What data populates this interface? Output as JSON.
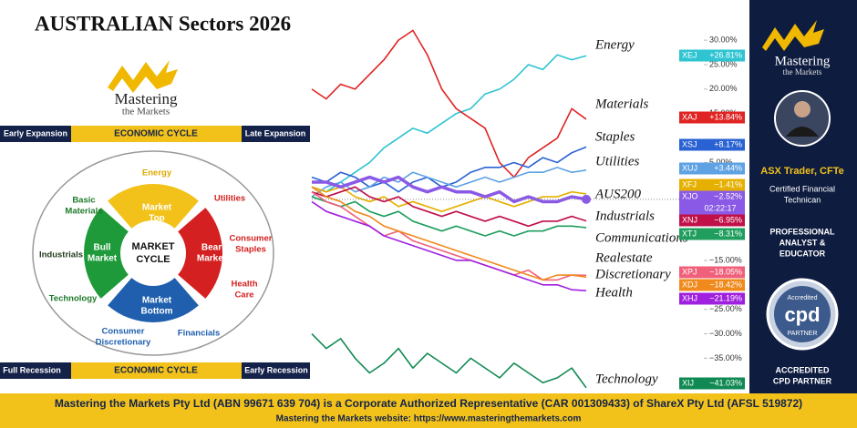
{
  "header": {
    "title": "AUSTRALIAN Sectors 2026"
  },
  "logo": {
    "name": "Mastering",
    "tagline": "the Markets"
  },
  "cycle": {
    "top_left": "Early Expansion",
    "top_center": "ECONOMIC CYCLE",
    "top_right": "Late Expansion",
    "bottom_left": "Full Recession",
    "bottom_center": "ECONOMIC CYCLE",
    "bottom_right": "Early Recession",
    "center": [
      "MARKET",
      "CYCLE"
    ],
    "phases": [
      [
        "Market",
        "Top"
      ],
      [
        "Bear",
        "Market"
      ],
      [
        "Market",
        "Bottom"
      ],
      [
        "Bull",
        "Market"
      ]
    ],
    "sectors": [
      {
        "lines": [
          "Energy"
        ],
        "color": "#e0a800"
      },
      {
        "lines": [
          "Utilities"
        ],
        "color": "#d42020"
      },
      {
        "lines": [
          "Consumer",
          "Staples"
        ],
        "color": "#d42020"
      },
      {
        "lines": [
          "Health",
          "Care"
        ],
        "color": "#d42020"
      },
      {
        "lines": [
          "Financials"
        ],
        "color": "#1f5fae"
      },
      {
        "lines": [
          "Consumer",
          "Discretionary"
        ],
        "color": "#1f5fae"
      },
      {
        "lines": [
          "Technology"
        ],
        "color": "#1f7a2a"
      },
      {
        "lines": [
          "Industrials"
        ],
        "color": "#1f3a1a"
      },
      {
        "lines": [
          "Basic",
          "Materials"
        ],
        "color": "#1f7a2a"
      }
    ]
  },
  "chart_data": {
    "type": "line",
    "ylim": [
      -42,
      33
    ],
    "yticks": [
      {
        "value": 30,
        "label": "30.00%"
      },
      {
        "value": 25,
        "label": "25.00%"
      },
      {
        "value": 20,
        "label": "20.00%"
      },
      {
        "value": 15,
        "label": "15.00%"
      },
      {
        "value": 5,
        "label": "5.00%"
      },
      {
        "value": -15,
        "label": "−15.00%"
      },
      {
        "value": -25,
        "label": "−25.00%"
      },
      {
        "value": -30,
        "label": "−30.00%"
      },
      {
        "value": -35,
        "label": "−35.00%"
      },
      {
        "value": -40,
        "label": "−40.00%"
      }
    ],
    "series": [
      {
        "name": "Energy",
        "code": "XEJ",
        "color": "#2ec4d2",
        "value_label": "+26.81%",
        "values": [
          0,
          -1,
          1,
          3,
          5,
          8,
          10,
          12,
          11,
          13,
          15,
          16,
          19,
          20,
          22,
          25,
          24,
          27,
          26,
          26.81
        ]
      },
      {
        "name": "Materials",
        "code": "XAJ",
        "color": "#e02424",
        "value_label": "+13.84%",
        "values": [
          20,
          18,
          21,
          20,
          23,
          26,
          30,
          32,
          27,
          20,
          16,
          14,
          12,
          5,
          2,
          6,
          8,
          10,
          16,
          13.84
        ]
      },
      {
        "name": "Staples",
        "code": "XSJ",
        "color": "#2a62d4",
        "value_label": "+8.17%",
        "values": [
          2,
          1,
          3,
          2,
          0,
          1,
          -1,
          1,
          2,
          0,
          1,
          3,
          4,
          4,
          5,
          4,
          6,
          5,
          7,
          8.17
        ]
      },
      {
        "name": "Utilities",
        "code": "XUJ",
        "color": "#5ea2e4",
        "value_label": "+3.44%",
        "values": [
          -2,
          0,
          1,
          -1,
          0,
          2,
          1,
          3,
          2,
          1,
          0,
          1,
          2,
          1,
          2,
          3,
          3,
          4,
          3,
          3.44
        ]
      },
      {
        "name": null,
        "code": "XFJ",
        "color": "#e6b000",
        "value_label": "−1.41%",
        "values": [
          0,
          -1,
          0,
          -2,
          -3,
          -2,
          -4,
          -3,
          -4,
          -5,
          -4,
          -3,
          -2,
          -3,
          -4,
          -3,
          -2,
          -2,
          -1,
          -1.41
        ]
      },
      {
        "name": "AUS200",
        "code": "XJO",
        "color": "#8a5ae6",
        "value_label": "−2.52%",
        "time": "02:22:17",
        "values": [
          1,
          1,
          0,
          1,
          2,
          1,
          2,
          0,
          -1,
          0,
          -1,
          -1,
          -2,
          -1,
          -3,
          -2,
          -3,
          -3,
          -2,
          -2.52
        ]
      },
      {
        "name": "Industrials",
        "code": "XNJ",
        "color": "#c0104a",
        "value_label": "−6.95%",
        "values": [
          -1,
          -2,
          -1,
          0,
          -2,
          -3,
          -2,
          -4,
          -5,
          -6,
          -5,
          -6,
          -7,
          -6,
          -7,
          -8,
          -7,
          -7,
          -6,
          -6.95
        ]
      },
      {
        "name": "Communications",
        "code": "XTJ",
        "color": "#1f9e5e",
        "value_label": "−8.31%",
        "values": [
          -2,
          -3,
          -4,
          -3,
          -5,
          -6,
          -5,
          -7,
          -8,
          -9,
          -8,
          -9,
          -10,
          -9,
          -10,
          -9,
          -9,
          -8,
          -8,
          -8.31
        ]
      },
      {
        "name": "Realestate",
        "code": "XPJ",
        "color": "#f0607a",
        "value_label": "−18.05%",
        "values": [
          -1,
          -3,
          -4,
          -6,
          -8,
          -10,
          -9,
          -11,
          -12,
          -13,
          -14,
          -15,
          -16,
          -17,
          -18,
          -17,
          -19,
          -19,
          -18,
          -18.05
        ]
      },
      {
        "name": "Discretionary",
        "code": "XDJ",
        "color": "#f08a1c",
        "value_label": "−18.42%",
        "values": [
          0,
          -2,
          -3,
          -5,
          -6,
          -8,
          -9,
          -10,
          -11,
          -12,
          -13,
          -14,
          -15,
          -16,
          -17,
          -18,
          -19,
          -18,
          -18,
          -18.42
        ]
      },
      {
        "name": "Health",
        "code": "XHJ",
        "color": "#a020e0",
        "value_label": "−21.19%",
        "values": [
          -3,
          -5,
          -6,
          -7,
          -8,
          -10,
          -11,
          -12,
          -13,
          -14,
          -15,
          -15,
          -16,
          -17,
          -18,
          -19,
          -20,
          -20,
          -21,
          -21.19
        ]
      },
      {
        "name": "Technology",
        "code": "XIJ",
        "color": "#108a52",
        "value_label": "−41.03%",
        "values": [
          -30,
          -33,
          -31,
          -35,
          -38,
          -36,
          -33,
          -37,
          -34,
          -36,
          -38,
          -35,
          -37,
          -39,
          -36,
          -38,
          -40,
          -39,
          -37,
          -41.03
        ]
      }
    ]
  },
  "profile": {
    "logo_name": "Mastering",
    "logo_tagline": "the Markets",
    "role": "ASX Trader, CFTe",
    "credential": [
      "Certified Financial",
      "Technican"
    ],
    "title": [
      "PROFESSIONAL",
      "ANALYST &",
      "EDUCATOR"
    ],
    "badge": {
      "top": "Accredited",
      "mark": "cpd",
      "bottom": "PARTNER"
    },
    "accreditation": [
      "ACCREDITED",
      "CPD PARTNER"
    ]
  },
  "footer": {
    "line1": "Mastering the Markets Pty Ltd (ABN 99671 639 704) is a Corporate Authorized Representative (CAR 001309433) of ShareX Pty Ltd (AFSL 519872)",
    "line2": "Mastering the Markets website: https://www.masteringthemarkets.com"
  }
}
